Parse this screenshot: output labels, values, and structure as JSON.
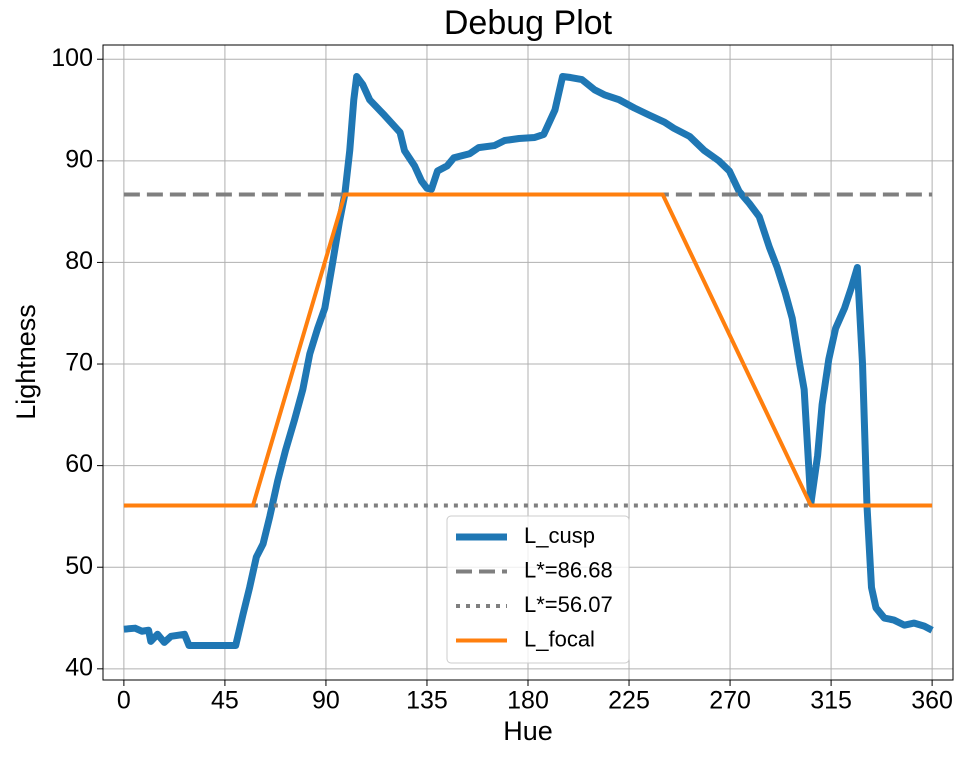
{
  "chart_data": {
    "type": "line",
    "title": "Debug Plot",
    "x_label": "Hue",
    "y_label": "Lightness",
    "xlim": [
      -9.3,
      369.3
    ],
    "ylim": [
      38.9,
      101.4
    ],
    "xticks": [
      0,
      45,
      90,
      135,
      180,
      225,
      270,
      315,
      360
    ],
    "yticks": [
      40,
      50,
      60,
      70,
      80,
      90,
      100
    ],
    "grid": true,
    "legend": "lower center",
    "series": [
      {
        "name": "L_cusp",
        "color": "#1f77b4",
        "dash": "solid",
        "width": 7,
        "x": [
          0,
          5,
          8,
          11,
          12,
          15,
          18,
          21,
          27,
          29,
          35,
          40,
          45,
          49.8,
          53,
          56,
          59,
          62,
          65,
          68.5,
          72,
          76,
          79.7,
          82.8,
          86.3,
          89.5,
          93,
          96,
          98.4,
          100.6,
          102.4,
          103.7,
          106.4,
          109.5,
          116,
          123,
          125,
          129.5,
          132.6,
          135,
          137,
          139.7,
          144,
          147,
          154,
          158,
          165,
          169.6,
          176,
          183,
          187,
          192,
          195.4,
          199,
          204,
          209.6,
          214,
          220.7,
          227.4,
          234,
          240.8,
          245,
          252,
          258.6,
          265,
          269.7,
          274,
          278.6,
          283,
          287.5,
          291,
          294.6,
          297.7,
          301,
          303,
          306,
          309,
          311,
          314,
          317,
          321,
          324,
          326.7,
          329,
          331,
          333,
          335,
          338.7,
          343,
          347.6,
          352,
          356.5,
          360
        ],
        "values": [
          43.9,
          44,
          43.7,
          43.8,
          42.7,
          43.4,
          42.6,
          43.2,
          43.4,
          42.3,
          42.3,
          42.3,
          42.3,
          42.3,
          45.3,
          48,
          51,
          52.3,
          55,
          58.5,
          61.5,
          64.5,
          67.5,
          71,
          73.5,
          75.5,
          80,
          84,
          86.7,
          91,
          96,
          98.3,
          97.5,
          96,
          94.5,
          92.8,
          91,
          89.5,
          88,
          87.3,
          87.2,
          89,
          89.5,
          90.3,
          90.7,
          91.3,
          91.5,
          92,
          92.2,
          92.3,
          92.6,
          95,
          98.3,
          98.2,
          98,
          97,
          96.5,
          96,
          95.2,
          94.5,
          93.8,
          93.2,
          92.4,
          91,
          90,
          89,
          87,
          85.8,
          84.5,
          81.5,
          79.5,
          77,
          74.5,
          70,
          67.5,
          56.3,
          61,
          66,
          70.5,
          73.5,
          75.5,
          77.5,
          79.5,
          70,
          56,
          48,
          46,
          45,
          44.8,
          44.3,
          44.5,
          44.2,
          43.8
        ]
      },
      {
        "name": "L*=86.68",
        "color": "#7f7f7f",
        "dash": "dashed",
        "width": 4,
        "x": [
          0,
          360
        ],
        "values": [
          86.68,
          86.68
        ]
      },
      {
        "name": "L*=56.07",
        "color": "#7f7f7f",
        "dash": "dotted",
        "width": 4,
        "x": [
          0,
          360
        ],
        "values": [
          56.07,
          56.07
        ]
      },
      {
        "name": "L_focal",
        "color": "#ff7f0e",
        "dash": "solid",
        "width": 4,
        "x": [
          0,
          57.5,
          98.4,
          240,
          306,
          360
        ],
        "values": [
          56.07,
          56.07,
          86.68,
          86.68,
          56.07,
          56.07
        ]
      }
    ]
  }
}
